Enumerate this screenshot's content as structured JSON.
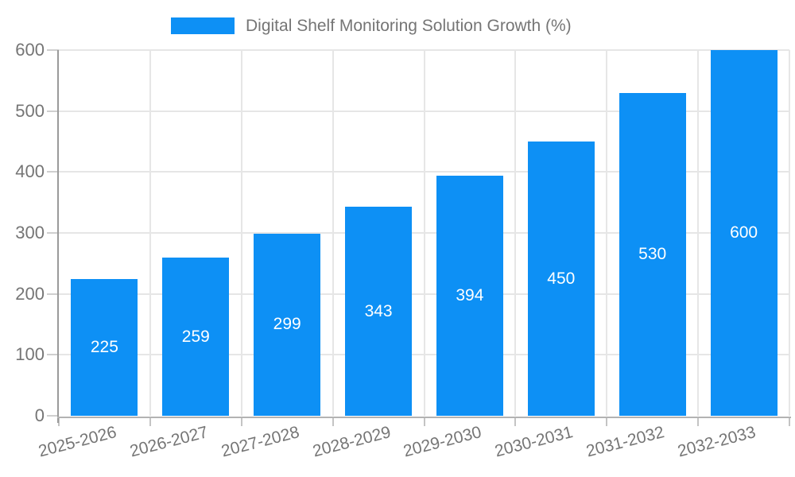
{
  "chart_data": {
    "type": "bar",
    "title": "",
    "categories": [
      "2025-2026",
      "2026-2027",
      "2027-2028",
      "2028-2029",
      "2029-2030",
      "2030-2031",
      "2031-2032",
      "2032-2033"
    ],
    "series": [
      {
        "name": "Digital Shelf Monitoring Solution Growth (%)",
        "color": "#0d90f5",
        "values": [
          225,
          259,
          299,
          343,
          394,
          450,
          530,
          600
        ]
      }
    ],
    "xlabel": "",
    "ylabel": "",
    "ylim": [
      0,
      600
    ],
    "yticks": [
      0,
      100,
      200,
      300,
      400,
      500,
      600
    ],
    "grid": true,
    "legend_position": "top-center",
    "value_labels_position": "inside-center",
    "value_label_color": "#ffffff",
    "axis_text_color": "#757575",
    "gridline_color": "#e6e6e6",
    "background_color": "#ffffff"
  }
}
